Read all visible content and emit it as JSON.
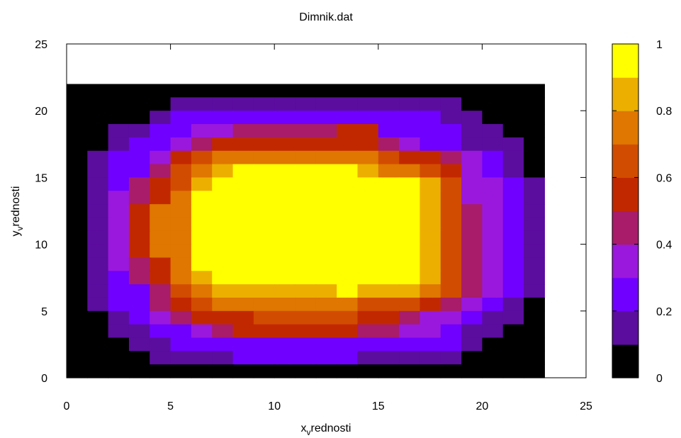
{
  "chart_data": {
    "type": "heatmap",
    "title": "Dimnik.dat",
    "xlabel": {
      "base": "x",
      "sub": "v",
      "rest": "rednosti"
    },
    "ylabel": {
      "base": "y",
      "sub": "v",
      "rest": "rednosti"
    },
    "xlim": [
      0,
      25
    ],
    "ylim": [
      0,
      25
    ],
    "xticks": [
      "0",
      "5",
      "10",
      "15",
      "20",
      "25"
    ],
    "yticks": [
      "0",
      "5",
      "10",
      "15",
      "20",
      "25"
    ],
    "colorbar": {
      "range": [
        0,
        1
      ],
      "ticks": [
        "0",
        "0.2",
        "0.4",
        "0.6",
        "0.8",
        "1"
      ],
      "levels": 10,
      "colors": [
        "#000000",
        "#5b0d9e",
        "#7000ff",
        "#9a18dd",
        "#a81c6a",
        "#c22800",
        "#d24c00",
        "#df7700",
        "#ecaf00",
        "#ffff00"
      ]
    },
    "grid": false,
    "cell_size": 1,
    "z_levels_rows_top_to_bottom": [
      "00000000000000000000000",
      "00000111111111111110000",
      "00001222222222222211000",
      "00112233444445522221100",
      "00122345555555543221110",
      "01223567777777765543210",
      "01224678999999877653210",
      "01245689999999999863321",
      "01345799999999999863321",
      "01357799999999999864321",
      "01357799999999999864321",
      "01357799999999999864321",
      "01357799999999999864321",
      "01345799999999999864321",
      "01245789999999999864321",
      "01224678888889888764321",
      "01224567777777666543210",
      "00123455566666554332110",
      "00112234555555443321100",
      "00011222222222222221000",
      "00001111222222111110000",
      "00000000000000000000000"
    ]
  }
}
